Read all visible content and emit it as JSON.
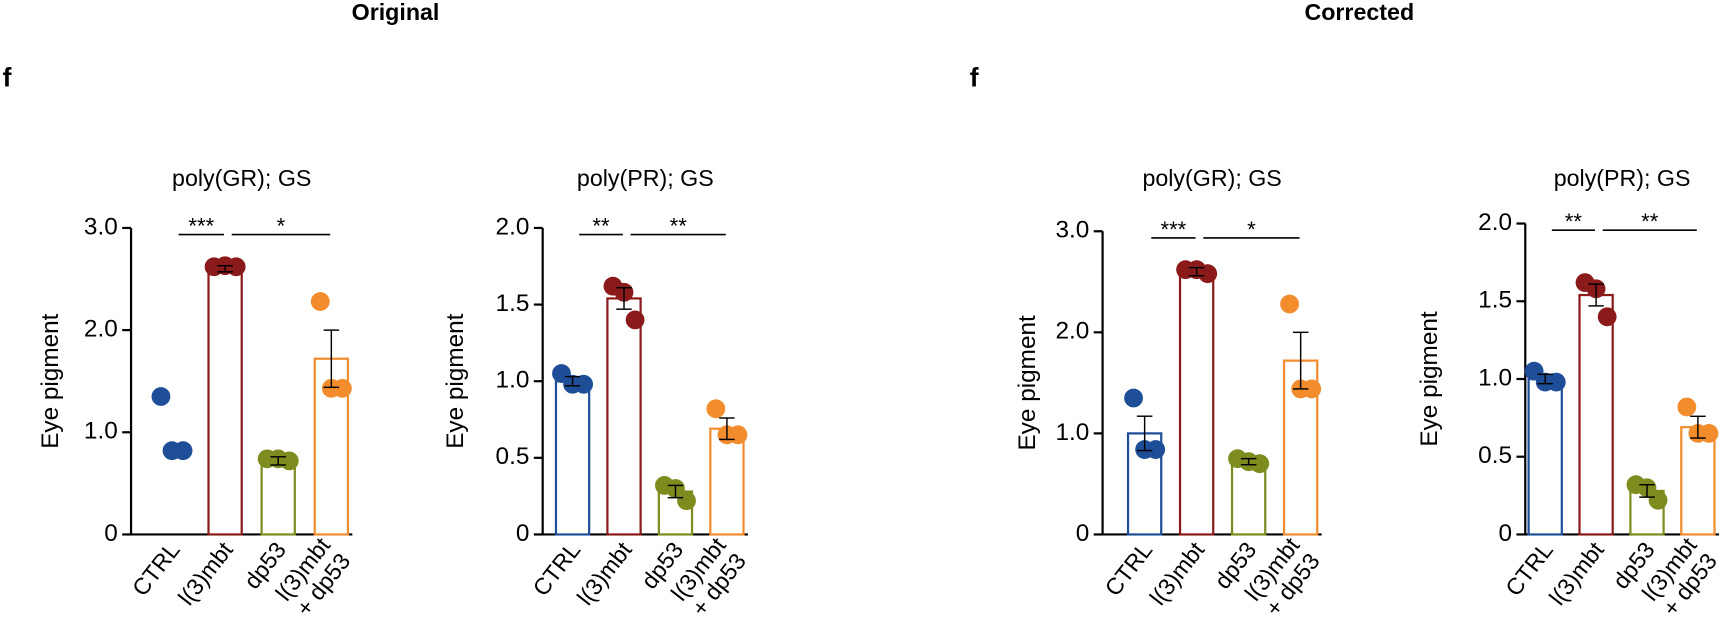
{
  "headings": [
    {
      "title": "Original",
      "panel": "f"
    },
    {
      "title": "Corrected",
      "panel": "f"
    }
  ],
  "chart_data": [
    {
      "type": "bar",
      "title": "poly(GR); GS",
      "ylabel": "Eye pigment",
      "categories": [
        "CTRL",
        "l(3)mbt",
        "dp53",
        "l(3)mbt\n+ dp53"
      ],
      "colors": [
        "#1f4e99",
        "#8b1a1a",
        "#7d8b1f",
        "#f28c2c"
      ],
      "values": [
        null,
        2.6,
        0.72,
        1.72
      ],
      "errors": [
        null,
        0.03,
        0.04,
        0.28
      ],
      "points": [
        [
          1.35,
          0.82,
          0.82
        ],
        [
          2.62,
          2.63,
          2.62
        ],
        [
          0.74,
          0.74,
          0.72
        ],
        [
          2.28,
          1.43,
          1.43
        ]
      ],
      "ylim": [
        0,
        3
      ],
      "yticks": [
        0,
        {
          "value": 1,
          "label": "1.0"
        },
        {
          "value": 2,
          "label": "2.0"
        },
        {
          "value": 3,
          "label": "3.0"
        }
      ],
      "comparisons": [
        {
          "label": "***",
          "categories": [
            "CTRL",
            "l(3)mbt"
          ]
        },
        {
          "label": "*",
          "categories": [
            "l(3)mbt",
            "l(3)mbt\n+ dp53"
          ]
        }
      ]
    },
    {
      "type": "bar",
      "title": "poly(PR); GS",
      "ylabel": "Eye pigment",
      "categories": [
        "CTRL",
        "l(3)mbt",
        "dp53",
        "l(3)mbt\n+ dp53"
      ],
      "colors": [
        "#1f4e99",
        "#8b1a1a",
        "#7d8b1f",
        "#f28c2c"
      ],
      "values": [
        1.0,
        1.54,
        0.28,
        0.69
      ],
      "errors": [
        0.03,
        0.07,
        0.04,
        0.07
      ],
      "points": [
        [
          1.05,
          0.98,
          0.98
        ],
        [
          1.62,
          1.58,
          1.4
        ],
        [
          0.32,
          0.3,
          0.22
        ],
        [
          0.82,
          0.65,
          0.65
        ]
      ],
      "ylim": [
        0,
        2
      ],
      "yticks": [
        0,
        0.5,
        {
          "value": 1,
          "label": "1.0"
        },
        1.5,
        {
          "value": 2,
          "label": "2.0"
        }
      ],
      "comparisons": [
        {
          "label": "**",
          "categories": [
            "CTRL",
            "l(3)mbt"
          ]
        },
        {
          "label": "**",
          "categories": [
            "l(3)mbt",
            "l(3)mbt\n+ dp53"
          ]
        }
      ]
    },
    {
      "type": "bar",
      "title": "poly(GR); GS",
      "ylabel": "Eye pigment",
      "categories": [
        "CTRL",
        "l(3)mbt",
        "dp53",
        "l(3)mbt\n+ dp53"
      ],
      "colors": [
        "#1f4e99",
        "#8b1a1a",
        "#7d8b1f",
        "#f28c2c"
      ],
      "values": [
        1.0,
        2.6,
        0.72,
        1.72
      ],
      "errors": [
        0.17,
        0.04,
        0.03,
        0.28
      ],
      "points": [
        [
          1.35,
          0.84,
          0.84
        ],
        [
          2.62,
          2.62,
          2.58
        ],
        [
          0.75,
          0.72,
          0.7
        ],
        [
          2.28,
          1.44,
          1.44
        ]
      ],
      "ylim": [
        0,
        3
      ],
      "yticks": [
        0,
        {
          "value": 1,
          "label": "1.0"
        },
        {
          "value": 2,
          "label": "2.0"
        },
        {
          "value": 3,
          "label": "3.0"
        }
      ],
      "comparisons": [
        {
          "label": "***",
          "categories": [
            "CTRL",
            "l(3)mbt"
          ]
        },
        {
          "label": "*",
          "categories": [
            "l(3)mbt",
            "l(3)mbt\n+ dp53"
          ]
        }
      ]
    },
    {
      "type": "bar",
      "title": "poly(PR); GS",
      "ylabel": "Eye pigment",
      "categories": [
        "CTRL",
        "l(3)mbt",
        "dp53",
        "l(3)mbt\n+ dp53"
      ],
      "colors": [
        "#1f4e99",
        "#8b1a1a",
        "#7d8b1f",
        "#f28c2c"
      ],
      "values": [
        1.0,
        1.54,
        0.28,
        0.69
      ],
      "errors": [
        0.03,
        0.07,
        0.04,
        0.07
      ],
      "points": [
        [
          1.05,
          0.98,
          0.98
        ],
        [
          1.62,
          1.58,
          1.4
        ],
        [
          0.32,
          0.3,
          0.22
        ],
        [
          0.82,
          0.65,
          0.65
        ]
      ],
      "ylim": [
        0,
        2
      ],
      "yticks": [
        0,
        0.5,
        {
          "value": 1,
          "label": "1.0"
        },
        1.5,
        {
          "value": 2,
          "label": "2.0"
        }
      ],
      "comparisons": [
        {
          "label": "**",
          "categories": [
            "CTRL",
            "l(3)mbt"
          ]
        },
        {
          "label": "**",
          "categories": [
            "l(3)mbt",
            "l(3)mbt\n+ dp53"
          ]
        }
      ]
    }
  ]
}
